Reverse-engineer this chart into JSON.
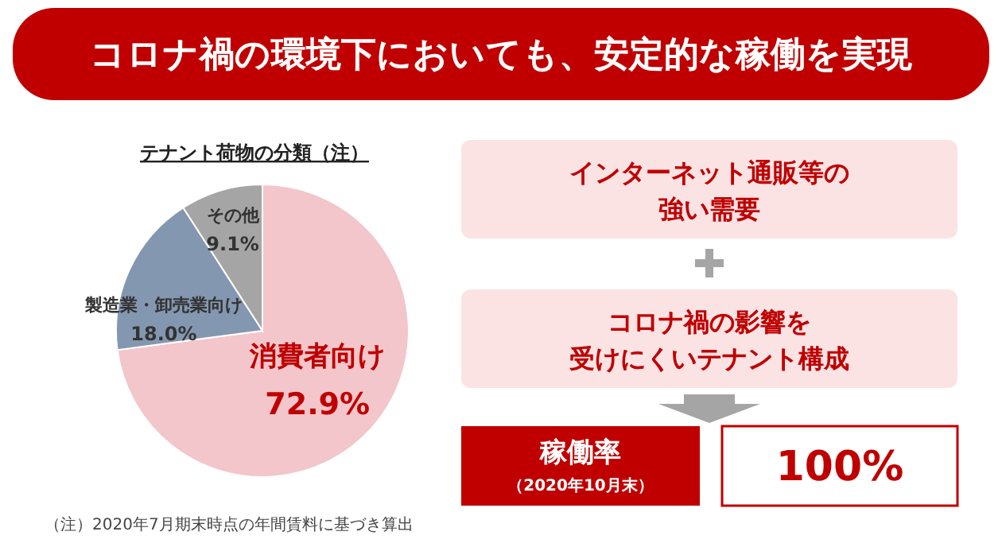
{
  "chart_data": [
    {
      "type": "pie",
      "title": "コロナ禍の環境下においても、安定的な稼働を実現",
      "subtitle": "テナント荷物の分類（注）",
      "categories": [
        "消費者向け",
        "製造業・卸売業向け",
        "その他"
      ],
      "values": [
        72.9,
        18.0,
        9.1
      ],
      "value_labels": [
        "72.9%",
        "18.0%",
        "9.1%"
      ],
      "colors": [
        "#f2c6ca",
        "#8497b0",
        "#a5a5a5"
      ],
      "annotations": [
        "（注）2020年7月期末時点の年間賃料に基づき算出"
      ]
    },
    {
      "type": "other",
      "annotations": [
        "インターネット通販等の",
        "強い需要",
        "コロナ禍の影響を",
        "受けにくいテナント構成",
        "稼働率",
        "（2020年10月末）",
        "100%"
      ]
    }
  ]
}
